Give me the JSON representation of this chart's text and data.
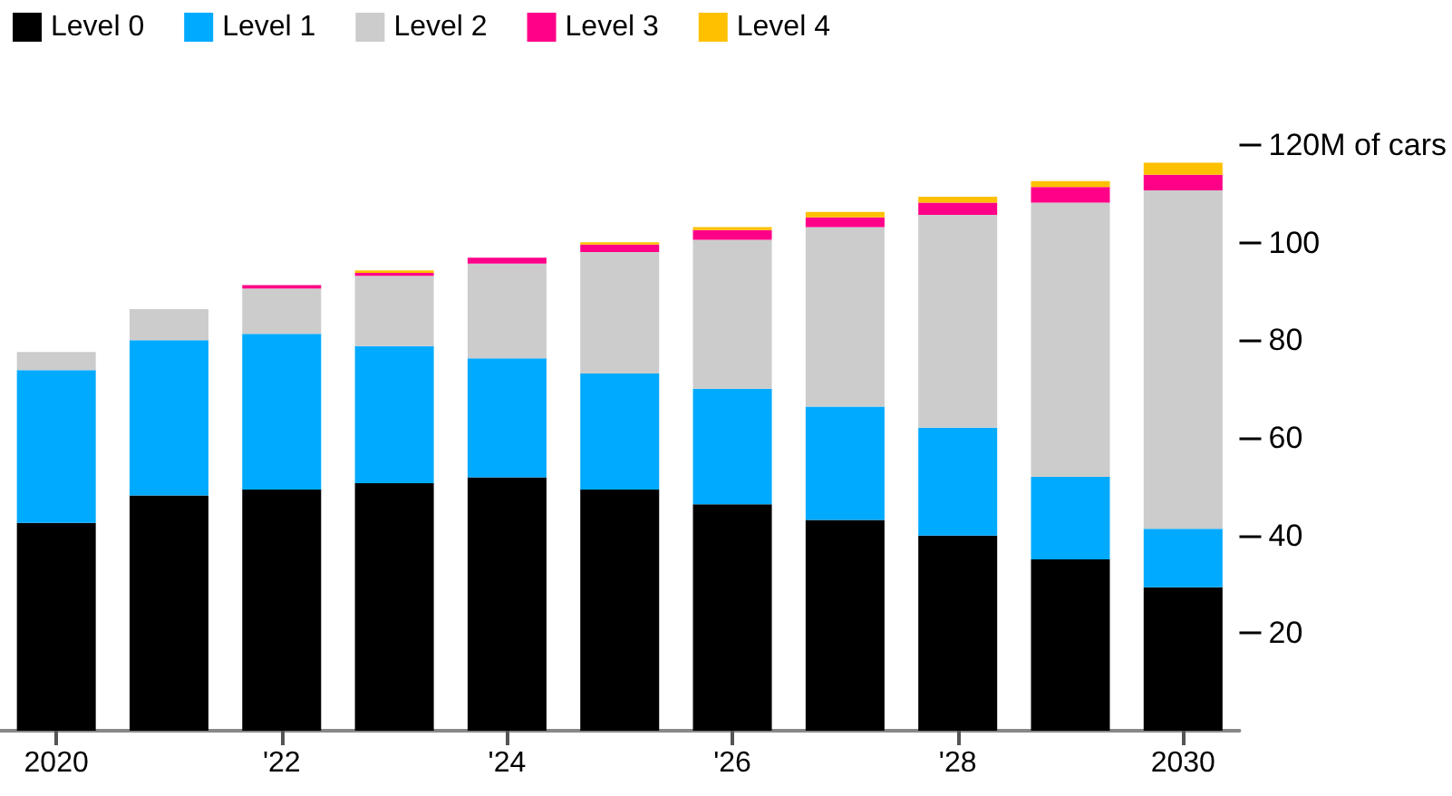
{
  "chart_data": {
    "type": "bar",
    "stacked": true,
    "categories": [
      "2020",
      null,
      "'22",
      null,
      "'24",
      null,
      "'26",
      null,
      "'28",
      null,
      "2030"
    ],
    "series": [
      {
        "name": "Level 0",
        "color": "#000000",
        "values": [
          42.6,
          48.2,
          49.4,
          50.7,
          51.9,
          49.4,
          46.4,
          43.2,
          40.0,
          35.1,
          29.4
        ]
      },
      {
        "name": "Level 1",
        "color": "#00aaff",
        "values": [
          31.3,
          31.8,
          31.9,
          28.1,
          24.4,
          23.8,
          23.7,
          23.2,
          22.1,
          16.9,
          12.0
        ]
      },
      {
        "name": "Level 2",
        "color": "#cccccc",
        "values": [
          3.7,
          6.4,
          9.3,
          14.4,
          19.4,
          24.9,
          30.5,
          36.8,
          43.6,
          56.2,
          69.3
        ]
      },
      {
        "name": "Level 3",
        "color": "#ff0088",
        "values": [
          0,
          0,
          0.7,
          0.6,
          1.2,
          1.5,
          2.0,
          2.0,
          2.5,
          3.2,
          3.2
        ]
      },
      {
        "name": "Level 4",
        "color": "#ffc000",
        "values": [
          0,
          0,
          0,
          0.5,
          0,
          0.5,
          0.6,
          1.1,
          1.2,
          1.2,
          2.5
        ]
      }
    ],
    "ylim": [
      0,
      120
    ],
    "yticks": [
      20,
      40,
      60,
      80,
      100,
      {
        "value": 120,
        "label": "120M of cars"
      }
    ],
    "legend": "top left",
    "grid": false
  }
}
